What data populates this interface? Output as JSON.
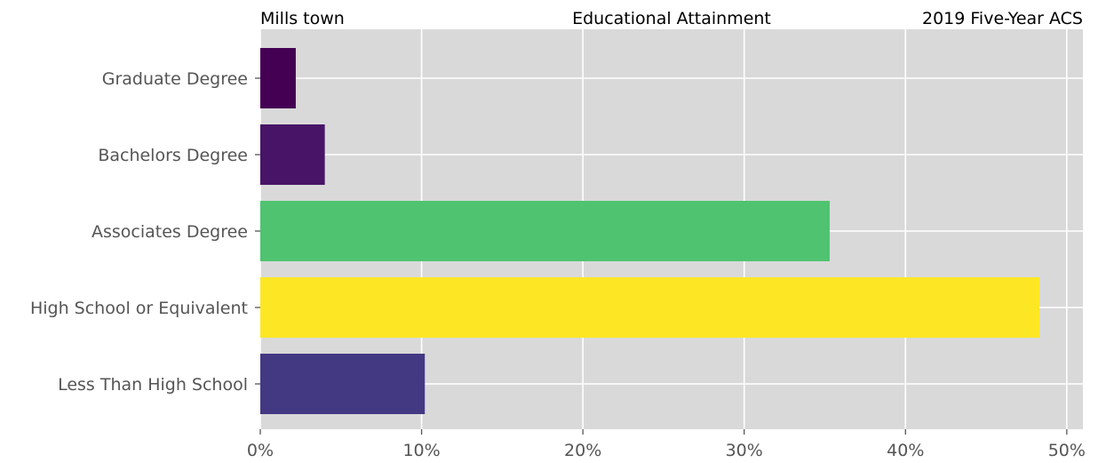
{
  "header": {
    "left": "Mills town",
    "center": "Educational Attainment",
    "right": "2019 Five-Year ACS"
  },
  "chart_data": {
    "type": "bar",
    "orientation": "horizontal",
    "title": "Educational Attainment",
    "categories": [
      "Graduate Degree",
      "Bachelors Degree",
      "Associates Degree",
      "High School or Equivalent",
      "Less Than High School"
    ],
    "values": [
      2.2,
      4.0,
      35.3,
      48.3,
      10.2
    ],
    "colors": [
      "#440154",
      "#481467",
      "#4fc36f",
      "#fde725",
      "#433983"
    ],
    "xlim": [
      0,
      51
    ],
    "xticks": [
      0,
      10,
      20,
      30,
      40,
      50
    ],
    "xtick_labels": [
      "0%",
      "10%",
      "20%",
      "30%",
      "40%",
      "50%"
    ],
    "xlabel": "",
    "ylabel": "",
    "grid": true,
    "background": "#d9d9d9"
  }
}
